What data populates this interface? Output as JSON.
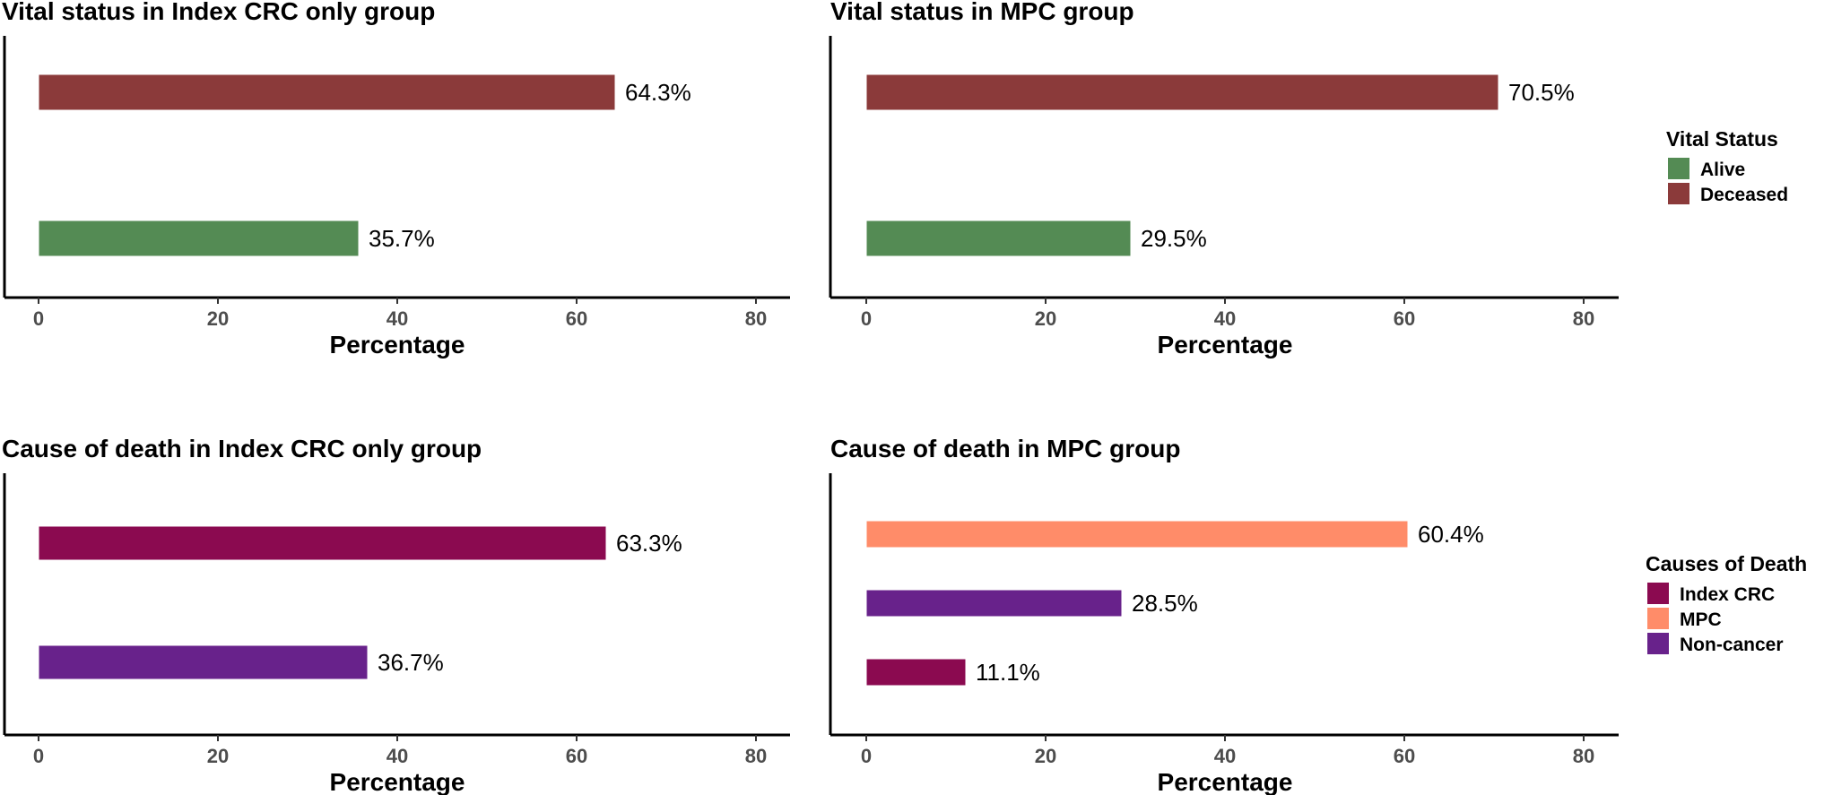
{
  "chart_data": [
    {
      "type": "bar",
      "orientation": "horizontal",
      "title": "Vital status in Index CRC only group",
      "xlabel": "Percentage",
      "xlim": [
        0,
        80
      ],
      "xticks": [
        0,
        20,
        40,
        60,
        80
      ],
      "bars": [
        {
          "category": "Deceased",
          "value": 64.3,
          "label": "64.3%",
          "color": "#8B3A3A"
        },
        {
          "category": "Alive",
          "value": 35.7,
          "label": "35.7%",
          "color": "#548B54"
        }
      ]
    },
    {
      "type": "bar",
      "orientation": "horizontal",
      "title": "Vital status in MPC group",
      "xlabel": "Percentage",
      "xlim": [
        0,
        80
      ],
      "xticks": [
        0,
        20,
        40,
        60,
        80
      ],
      "bars": [
        {
          "category": "Deceased",
          "value": 70.5,
          "label": "70.5%",
          "color": "#8B3A3A"
        },
        {
          "category": "Alive",
          "value": 29.5,
          "label": "29.5%",
          "color": "#548B54"
        }
      ]
    },
    {
      "type": "bar",
      "orientation": "horizontal",
      "title": "Cause of death in Index CRC only group",
      "xlabel": "Percentage",
      "xlim": [
        0,
        80
      ],
      "xticks": [
        0,
        20,
        40,
        60,
        80
      ],
      "bars": [
        {
          "category": "Index CRC",
          "value": 63.3,
          "label": "63.3%",
          "color": "#8B0A50"
        },
        {
          "category": "Non-cancer",
          "value": 36.7,
          "label": "36.7%",
          "color": "#68228B"
        }
      ]
    },
    {
      "type": "bar",
      "orientation": "horizontal",
      "title": "Cause of death in MPC group",
      "xlabel": "Percentage",
      "xlim": [
        0,
        80
      ],
      "xticks": [
        0,
        20,
        40,
        60,
        80
      ],
      "bars": [
        {
          "category": "MPC",
          "value": 60.4,
          "label": "60.4%",
          "color": "#FF8C69"
        },
        {
          "category": "Non-cancer",
          "value": 28.5,
          "label": "28.5%",
          "color": "#68228B"
        },
        {
          "category": "Index CRC",
          "value": 11.1,
          "label": "11.1%",
          "color": "#8B0A50"
        }
      ]
    }
  ],
  "legends": [
    {
      "title": "Vital Status",
      "items": [
        {
          "label": "Alive",
          "color": "#548B54"
        },
        {
          "label": "Deceased",
          "color": "#8B3A3A"
        }
      ]
    },
    {
      "title": "Causes of Death",
      "items": [
        {
          "label": "Index CRC",
          "color": "#8B0A50"
        },
        {
          "label": "MPC",
          "color": "#FF8C69"
        },
        {
          "label": "Non-cancer",
          "color": "#68228B"
        }
      ]
    }
  ]
}
